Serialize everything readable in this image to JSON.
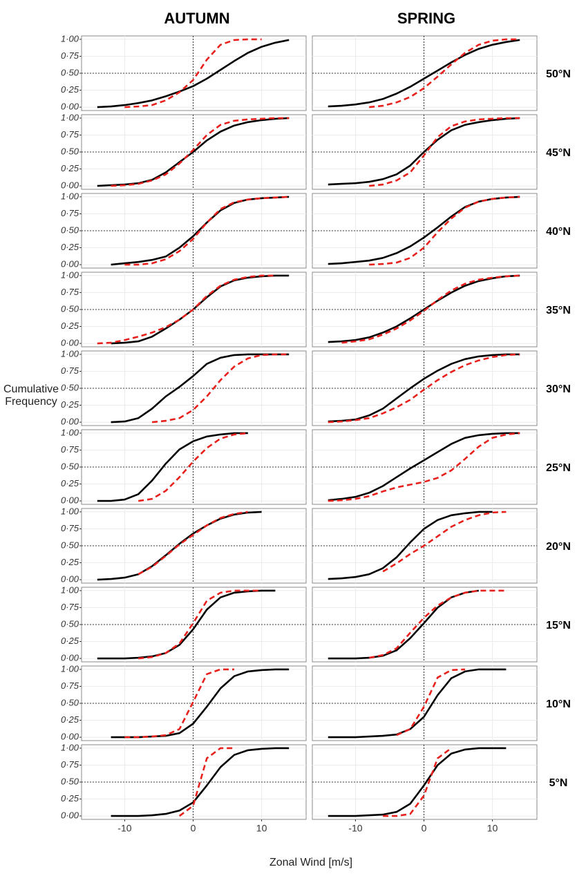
{
  "chart_data": {
    "type": "line",
    "columns": [
      "AUTUMN",
      "SPRING"
    ],
    "rows": [
      "50°N",
      "45°N",
      "40°N",
      "35°N",
      "30°N",
      "25°N",
      "20°N",
      "15°N",
      "10°N",
      "5°N"
    ],
    "xlabel": "Zonal Wind [m/s]",
    "ylabel": "Cumulative Frequency",
    "xlim": [
      -16.3,
      16.5
    ],
    "ylim": [
      -0.05,
      1.05
    ],
    "xticks": [
      -10,
      0,
      10
    ],
    "yticks": [
      {
        "value": 0,
        "label": "0·00"
      },
      {
        "value": 0.25,
        "label": "0·25"
      },
      {
        "value": 0.5,
        "label": "0·50"
      },
      {
        "value": 0.75,
        "label": "0·75"
      },
      {
        "value": 1,
        "label": "1·00"
      }
    ],
    "grid": true,
    "reference_lines": {
      "x": 0,
      "y": 0.5
    },
    "line_styles": [
      {
        "color": "#000000",
        "dashed": false
      },
      {
        "color": "#e8201c",
        "dashed": true
      }
    ],
    "x": [
      -14,
      -12,
      -10,
      -8,
      -6,
      -4,
      -2,
      0,
      2,
      4,
      6,
      8,
      10,
      12,
      14
    ],
    "panels": [
      [
        [
          0.0,
          0.01,
          0.03,
          0.06,
          0.1,
          0.16,
          0.23,
          0.31,
          0.42,
          0.55,
          0.68,
          0.8,
          0.89,
          0.95,
          0.99
        ],
        [
          null,
          null,
          0.0,
          0.01,
          0.03,
          0.1,
          0.22,
          0.4,
          0.7,
          0.92,
          0.99,
          1.0,
          1.0,
          null,
          null
        ]
      ],
      [
        [
          0.01,
          0.02,
          0.04,
          0.07,
          0.12,
          0.2,
          0.3,
          0.42,
          0.54,
          0.66,
          0.77,
          0.86,
          0.92,
          0.96,
          0.99
        ],
        [
          null,
          null,
          null,
          0.0,
          0.02,
          0.07,
          0.15,
          0.28,
          0.45,
          0.63,
          0.8,
          0.92,
          0.98,
          1.0,
          1.0
        ]
      ],
      [
        [
          0.0,
          0.01,
          0.02,
          0.04,
          0.09,
          0.2,
          0.35,
          0.5,
          0.67,
          0.8,
          0.89,
          0.94,
          0.97,
          0.99,
          1.0
        ],
        [
          null,
          0.0,
          0.01,
          0.03,
          0.08,
          0.17,
          0.33,
          0.53,
          0.75,
          0.9,
          0.96,
          0.98,
          0.99,
          1.0,
          1.0
        ]
      ],
      [
        [
          0.02,
          0.03,
          0.04,
          0.06,
          0.1,
          0.17,
          0.3,
          0.5,
          0.68,
          0.82,
          0.9,
          0.94,
          0.97,
          0.99,
          1.0
        ],
        [
          null,
          null,
          null,
          0.0,
          0.02,
          0.08,
          0.2,
          0.45,
          0.72,
          0.88,
          0.95,
          0.98,
          0.99,
          1.0,
          1.0
        ]
      ],
      [
        [
          null,
          0.0,
          0.02,
          0.04,
          0.07,
          0.12,
          0.25,
          0.42,
          0.62,
          0.8,
          0.91,
          0.96,
          0.98,
          0.99,
          1.0
        ],
        [
          null,
          null,
          0.0,
          0.0,
          0.02,
          0.08,
          0.2,
          0.38,
          0.62,
          0.82,
          0.92,
          0.96,
          0.98,
          0.99,
          1.0
        ]
      ],
      [
        [
          0.01,
          0.02,
          0.04,
          0.06,
          0.1,
          0.17,
          0.27,
          0.4,
          0.55,
          0.71,
          0.85,
          0.93,
          0.97,
          0.99,
          1.0
        ],
        [
          null,
          null,
          null,
          0.0,
          0.01,
          0.03,
          0.1,
          0.25,
          0.48,
          0.68,
          0.84,
          0.93,
          0.97,
          0.99,
          1.0
        ]
      ],
      [
        [
          null,
          0.0,
          0.01,
          0.03,
          0.1,
          0.22,
          0.35,
          0.5,
          0.68,
          0.84,
          0.93,
          0.97,
          0.99,
          1.0,
          1.0
        ],
        [
          0.0,
          0.01,
          0.05,
          0.1,
          0.16,
          0.24,
          0.35,
          0.5,
          0.7,
          0.85,
          0.94,
          0.98,
          1.0,
          1.0,
          null
        ]
      ],
      [
        [
          0.02,
          0.03,
          0.05,
          0.09,
          0.16,
          0.25,
          0.37,
          0.5,
          0.63,
          0.75,
          0.85,
          0.92,
          0.96,
          0.99,
          1.0
        ],
        [
          null,
          0.01,
          0.03,
          0.06,
          0.13,
          0.22,
          0.34,
          0.48,
          0.64,
          0.78,
          0.88,
          0.94,
          0.97,
          0.99,
          1.0
        ]
      ],
      [
        [
          null,
          0.0,
          0.01,
          0.06,
          0.2,
          0.38,
          0.52,
          0.68,
          0.86,
          0.95,
          0.99,
          1.0,
          1.0,
          1.0,
          1.0
        ],
        [
          null,
          null,
          null,
          null,
          0.0,
          0.02,
          0.06,
          0.18,
          0.38,
          0.62,
          0.82,
          0.94,
          0.99,
          1.0,
          1.0
        ]
      ],
      [
        [
          0.01,
          0.02,
          0.04,
          0.1,
          0.2,
          0.35,
          0.5,
          0.64,
          0.76,
          0.86,
          0.93,
          0.97,
          0.99,
          1.0,
          1.0
        ],
        [
          0.0,
          0.01,
          0.03,
          0.06,
          0.13,
          0.22,
          0.33,
          0.48,
          0.62,
          0.74,
          0.84,
          0.91,
          0.96,
          0.99,
          1.0
        ]
      ],
      [
        [
          0.0,
          0.0,
          0.02,
          0.1,
          0.3,
          0.55,
          0.76,
          0.88,
          0.95,
          0.98,
          1.0,
          1.0,
          null,
          null,
          null
        ],
        [
          null,
          null,
          null,
          0.0,
          0.03,
          0.15,
          0.35,
          0.58,
          0.78,
          0.92,
          0.98,
          1.0,
          null,
          null,
          null
        ]
      ],
      [
        [
          0.01,
          0.03,
          0.06,
          0.12,
          0.22,
          0.35,
          0.48,
          0.6,
          0.72,
          0.84,
          0.93,
          0.97,
          0.99,
          1.0,
          1.0
        ],
        [
          0.0,
          0.01,
          0.03,
          0.07,
          0.14,
          0.2,
          0.24,
          0.28,
          0.34,
          0.45,
          0.62,
          0.8,
          0.93,
          0.98,
          1.0
        ]
      ],
      [
        [
          0.0,
          0.01,
          0.03,
          0.08,
          0.2,
          0.36,
          0.53,
          0.68,
          0.8,
          0.9,
          0.96,
          0.99,
          1.0,
          null,
          null
        ],
        [
          null,
          null,
          null,
          0.08,
          0.19,
          0.35,
          0.52,
          0.66,
          0.8,
          0.91,
          0.97,
          1.0,
          null,
          null,
          null
        ]
      ],
      [
        [
          0.01,
          0.02,
          0.04,
          0.08,
          0.17,
          0.33,
          0.55,
          0.75,
          0.88,
          0.95,
          0.98,
          1.0,
          1.0,
          null,
          null
        ],
        [
          null,
          null,
          null,
          null,
          0.12,
          0.24,
          0.38,
          0.5,
          0.64,
          0.78,
          0.88,
          0.95,
          0.99,
          1.0,
          null
        ]
      ],
      [
        [
          0.0,
          0.0,
          0.0,
          0.01,
          0.03,
          0.08,
          0.2,
          0.43,
          0.72,
          0.9,
          0.97,
          0.99,
          1.0,
          1.0,
          null
        ],
        [
          null,
          null,
          null,
          0.0,
          0.02,
          0.08,
          0.22,
          0.52,
          0.85,
          0.97,
          1.0,
          1.0,
          1.0,
          null,
          null
        ]
      ],
      [
        [
          0.0,
          0.0,
          0.0,
          0.01,
          0.04,
          0.12,
          0.3,
          0.52,
          0.75,
          0.9,
          0.97,
          1.0,
          null,
          null,
          null
        ],
        [
          null,
          null,
          null,
          0.01,
          0.05,
          0.15,
          0.38,
          0.6,
          0.78,
          0.9,
          0.97,
          1.0,
          1.0,
          1.0,
          null
        ]
      ],
      [
        [
          null,
          0.0,
          0.0,
          0.0,
          0.01,
          0.02,
          0.06,
          0.2,
          0.45,
          0.72,
          0.9,
          0.97,
          0.99,
          1.0,
          1.0
        ],
        [
          null,
          null,
          0.0,
          0.0,
          0.01,
          0.03,
          0.12,
          0.52,
          0.93,
          1.0,
          1.0,
          null,
          null,
          null,
          null
        ]
      ],
      [
        [
          0.0,
          0.0,
          0.0,
          0.01,
          0.02,
          0.04,
          0.12,
          0.3,
          0.62,
          0.87,
          0.97,
          1.0,
          1.0,
          1.0,
          null
        ],
        [
          null,
          null,
          null,
          null,
          null,
          0.03,
          0.12,
          0.45,
          0.88,
          0.99,
          1.0,
          null,
          null,
          null,
          null
        ]
      ],
      [
        [
          null,
          0.0,
          0.0,
          0.0,
          0.01,
          0.03,
          0.08,
          0.2,
          0.45,
          0.72,
          0.9,
          0.97,
          0.99,
          1.0,
          1.0
        ],
        [
          null,
          null,
          null,
          null,
          null,
          null,
          0.0,
          0.15,
          0.85,
          1.0,
          1.0,
          null,
          null,
          null,
          null
        ]
      ],
      [
        [
          0.0,
          0.0,
          0.0,
          0.01,
          0.02,
          0.06,
          0.18,
          0.45,
          0.75,
          0.92,
          0.98,
          1.0,
          1.0,
          1.0,
          null
        ],
        [
          null,
          null,
          null,
          null,
          0.0,
          0.0,
          0.03,
          0.3,
          0.85,
          1.0,
          null,
          null,
          null,
          null,
          null
        ]
      ]
    ]
  }
}
